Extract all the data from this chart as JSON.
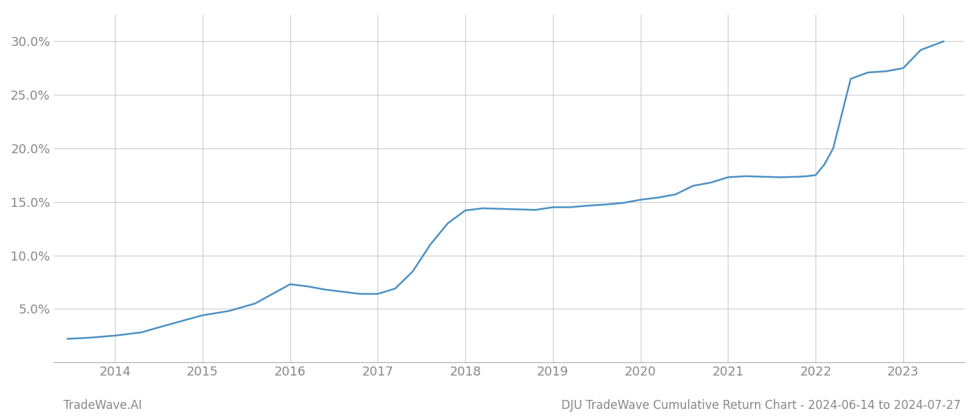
{
  "x_values": [
    2013.46,
    2013.7,
    2014.0,
    2014.3,
    2014.6,
    2015.0,
    2015.3,
    2015.6,
    2016.0,
    2016.2,
    2016.4,
    2016.6,
    2016.8,
    2017.0,
    2017.2,
    2017.4,
    2017.6,
    2017.8,
    2018.0,
    2018.2,
    2018.4,
    2018.6,
    2018.8,
    2019.0,
    2019.2,
    2019.4,
    2019.6,
    2019.8,
    2020.0,
    2020.2,
    2020.4,
    2020.6,
    2020.8,
    2021.0,
    2021.2,
    2021.4,
    2021.6,
    2021.8,
    2021.9,
    2022.0,
    2022.1,
    2022.2,
    2022.4,
    2022.6,
    2022.8,
    2023.0,
    2023.2,
    2023.46
  ],
  "y_values": [
    2.2,
    2.3,
    2.5,
    2.8,
    3.5,
    4.4,
    4.8,
    5.5,
    7.3,
    7.1,
    6.8,
    6.6,
    6.4,
    6.4,
    6.9,
    8.5,
    11.0,
    13.0,
    14.2,
    14.4,
    14.35,
    14.3,
    14.25,
    14.5,
    14.5,
    14.65,
    14.75,
    14.9,
    15.2,
    15.4,
    15.7,
    16.5,
    16.8,
    17.3,
    17.4,
    17.35,
    17.3,
    17.35,
    17.4,
    17.5,
    18.5,
    20.0,
    26.5,
    27.1,
    27.2,
    27.5,
    29.2,
    30.0
  ],
  "line_color": "#4a90c4",
  "line_width": 1.8,
  "title": "DJU TradeWave Cumulative Return Chart - 2024-06-14 to 2024-07-27",
  "watermark": "TradeWave.AI",
  "background_color": "#ffffff",
  "grid_color": "#cccccc",
  "tick_color": "#888888",
  "xlim": [
    2013.3,
    2023.7
  ],
  "ylim": [
    0.0,
    32.5
  ],
  "yticks": [
    5.0,
    10.0,
    15.0,
    20.0,
    25.0,
    30.0
  ],
  "xticks": [
    2014,
    2015,
    2016,
    2017,
    2018,
    2019,
    2020,
    2021,
    2022,
    2023
  ],
  "figsize": [
    14.0,
    6.0
  ],
  "dpi": 100
}
